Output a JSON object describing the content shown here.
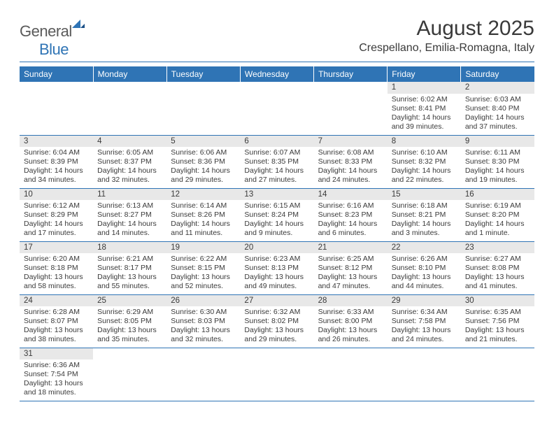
{
  "logo": {
    "word1": "General",
    "word2": "Blue"
  },
  "title": "August 2025",
  "location": "Crespellano, Emilia-Romagna, Italy",
  "colors": {
    "header_bg": "#2f74b5",
    "header_text": "#ffffff",
    "daynum_bg": "#e8e8e8",
    "rule": "#2f74b5",
    "text": "#3a3a3a",
    "background": "#ffffff"
  },
  "typography": {
    "title_fontsize": 30,
    "location_fontsize": 16,
    "header_fontsize": 12,
    "daynum_fontsize": 11.5,
    "cell_fontsize": 10.5
  },
  "headers": [
    "Sunday",
    "Monday",
    "Tuesday",
    "Wednesday",
    "Thursday",
    "Friday",
    "Saturday"
  ],
  "weeks": [
    [
      null,
      null,
      null,
      null,
      null,
      {
        "n": "1",
        "sunrise": "Sunrise: 6:02 AM",
        "sunset": "Sunset: 8:41 PM",
        "daylight": "Daylight: 14 hours and 39 minutes."
      },
      {
        "n": "2",
        "sunrise": "Sunrise: 6:03 AM",
        "sunset": "Sunset: 8:40 PM",
        "daylight": "Daylight: 14 hours and 37 minutes."
      }
    ],
    [
      {
        "n": "3",
        "sunrise": "Sunrise: 6:04 AM",
        "sunset": "Sunset: 8:39 PM",
        "daylight": "Daylight: 14 hours and 34 minutes."
      },
      {
        "n": "4",
        "sunrise": "Sunrise: 6:05 AM",
        "sunset": "Sunset: 8:37 PM",
        "daylight": "Daylight: 14 hours and 32 minutes."
      },
      {
        "n": "5",
        "sunrise": "Sunrise: 6:06 AM",
        "sunset": "Sunset: 8:36 PM",
        "daylight": "Daylight: 14 hours and 29 minutes."
      },
      {
        "n": "6",
        "sunrise": "Sunrise: 6:07 AM",
        "sunset": "Sunset: 8:35 PM",
        "daylight": "Daylight: 14 hours and 27 minutes."
      },
      {
        "n": "7",
        "sunrise": "Sunrise: 6:08 AM",
        "sunset": "Sunset: 8:33 PM",
        "daylight": "Daylight: 14 hours and 24 minutes."
      },
      {
        "n": "8",
        "sunrise": "Sunrise: 6:10 AM",
        "sunset": "Sunset: 8:32 PM",
        "daylight": "Daylight: 14 hours and 22 minutes."
      },
      {
        "n": "9",
        "sunrise": "Sunrise: 6:11 AM",
        "sunset": "Sunset: 8:30 PM",
        "daylight": "Daylight: 14 hours and 19 minutes."
      }
    ],
    [
      {
        "n": "10",
        "sunrise": "Sunrise: 6:12 AM",
        "sunset": "Sunset: 8:29 PM",
        "daylight": "Daylight: 14 hours and 17 minutes."
      },
      {
        "n": "11",
        "sunrise": "Sunrise: 6:13 AM",
        "sunset": "Sunset: 8:27 PM",
        "daylight": "Daylight: 14 hours and 14 minutes."
      },
      {
        "n": "12",
        "sunrise": "Sunrise: 6:14 AM",
        "sunset": "Sunset: 8:26 PM",
        "daylight": "Daylight: 14 hours and 11 minutes."
      },
      {
        "n": "13",
        "sunrise": "Sunrise: 6:15 AM",
        "sunset": "Sunset: 8:24 PM",
        "daylight": "Daylight: 14 hours and 9 minutes."
      },
      {
        "n": "14",
        "sunrise": "Sunrise: 6:16 AM",
        "sunset": "Sunset: 8:23 PM",
        "daylight": "Daylight: 14 hours and 6 minutes."
      },
      {
        "n": "15",
        "sunrise": "Sunrise: 6:18 AM",
        "sunset": "Sunset: 8:21 PM",
        "daylight": "Daylight: 14 hours and 3 minutes."
      },
      {
        "n": "16",
        "sunrise": "Sunrise: 6:19 AM",
        "sunset": "Sunset: 8:20 PM",
        "daylight": "Daylight: 14 hours and 1 minute."
      }
    ],
    [
      {
        "n": "17",
        "sunrise": "Sunrise: 6:20 AM",
        "sunset": "Sunset: 8:18 PM",
        "daylight": "Daylight: 13 hours and 58 minutes."
      },
      {
        "n": "18",
        "sunrise": "Sunrise: 6:21 AM",
        "sunset": "Sunset: 8:17 PM",
        "daylight": "Daylight: 13 hours and 55 minutes."
      },
      {
        "n": "19",
        "sunrise": "Sunrise: 6:22 AM",
        "sunset": "Sunset: 8:15 PM",
        "daylight": "Daylight: 13 hours and 52 minutes."
      },
      {
        "n": "20",
        "sunrise": "Sunrise: 6:23 AM",
        "sunset": "Sunset: 8:13 PM",
        "daylight": "Daylight: 13 hours and 49 minutes."
      },
      {
        "n": "21",
        "sunrise": "Sunrise: 6:25 AM",
        "sunset": "Sunset: 8:12 PM",
        "daylight": "Daylight: 13 hours and 47 minutes."
      },
      {
        "n": "22",
        "sunrise": "Sunrise: 6:26 AM",
        "sunset": "Sunset: 8:10 PM",
        "daylight": "Daylight: 13 hours and 44 minutes."
      },
      {
        "n": "23",
        "sunrise": "Sunrise: 6:27 AM",
        "sunset": "Sunset: 8:08 PM",
        "daylight": "Daylight: 13 hours and 41 minutes."
      }
    ],
    [
      {
        "n": "24",
        "sunrise": "Sunrise: 6:28 AM",
        "sunset": "Sunset: 8:07 PM",
        "daylight": "Daylight: 13 hours and 38 minutes."
      },
      {
        "n": "25",
        "sunrise": "Sunrise: 6:29 AM",
        "sunset": "Sunset: 8:05 PM",
        "daylight": "Daylight: 13 hours and 35 minutes."
      },
      {
        "n": "26",
        "sunrise": "Sunrise: 6:30 AM",
        "sunset": "Sunset: 8:03 PM",
        "daylight": "Daylight: 13 hours and 32 minutes."
      },
      {
        "n": "27",
        "sunrise": "Sunrise: 6:32 AM",
        "sunset": "Sunset: 8:02 PM",
        "daylight": "Daylight: 13 hours and 29 minutes."
      },
      {
        "n": "28",
        "sunrise": "Sunrise: 6:33 AM",
        "sunset": "Sunset: 8:00 PM",
        "daylight": "Daylight: 13 hours and 26 minutes."
      },
      {
        "n": "29",
        "sunrise": "Sunrise: 6:34 AM",
        "sunset": "Sunset: 7:58 PM",
        "daylight": "Daylight: 13 hours and 24 minutes."
      },
      {
        "n": "30",
        "sunrise": "Sunrise: 6:35 AM",
        "sunset": "Sunset: 7:56 PM",
        "daylight": "Daylight: 13 hours and 21 minutes."
      }
    ],
    [
      {
        "n": "31",
        "sunrise": "Sunrise: 6:36 AM",
        "sunset": "Sunset: 7:54 PM",
        "daylight": "Daylight: 13 hours and 18 minutes."
      },
      null,
      null,
      null,
      null,
      null,
      null
    ]
  ]
}
